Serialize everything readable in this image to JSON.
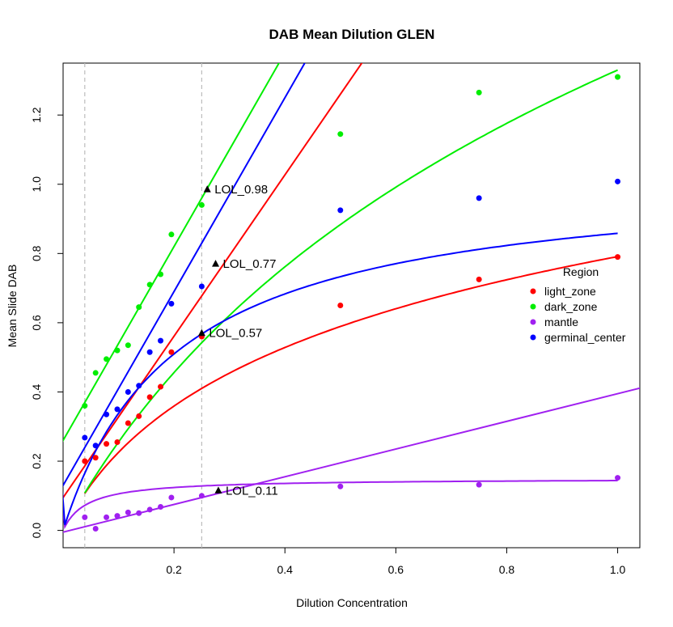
{
  "chart_data": {
    "type": "scatter",
    "title": "DAB Mean Dilution GLEN",
    "xlabel": "Dilution Concentration",
    "ylabel": "Mean Slide DAB",
    "xlim": [
      0.0,
      1.04
    ],
    "ylim": [
      -0.05,
      1.35
    ],
    "x_ticks": [
      0.2,
      0.4,
      0.6,
      0.8,
      1.0
    ],
    "x_tick_labels": [
      "0.2",
      "0.4",
      "0.6",
      "0.8",
      "1.0"
    ],
    "y_ticks": [
      0.0,
      0.2,
      0.4,
      0.6,
      0.8,
      1.0,
      1.2
    ],
    "y_tick_labels": [
      "0.0",
      "0.2",
      "0.4",
      "0.6",
      "0.8",
      "1.0",
      "1.2"
    ],
    "vlines": [
      0.0391,
      0.25
    ],
    "legend": {
      "title": "Region",
      "placement": "right"
    },
    "series": [
      {
        "name": "light_zone",
        "color": "#ff0000",
        "x": [
          0.0391,
          0.0586,
          0.0781,
          0.0977,
          0.1172,
          0.1367,
          0.1563,
          0.1758,
          0.1953,
          0.25,
          0.5,
          0.75,
          1.0
        ],
        "y": [
          0.2,
          0.21,
          0.25,
          0.255,
          0.31,
          0.33,
          0.385,
          0.415,
          0.515,
          0.56,
          0.65,
          0.725,
          0.79
        ],
        "log_fit": {
          "a": 0.791,
          "b": 0.104,
          "x_from": 0.0391
        },
        "lin_fit": {
          "a": 0.095,
          "b": 2.33
        },
        "lol": {
          "x": 0.25,
          "y": 0.57,
          "label": "LOL_0.57"
        }
      },
      {
        "name": "dark_zone",
        "color": "#00ee00",
        "x": [
          0.0391,
          0.0586,
          0.0781,
          0.0977,
          0.1172,
          0.1367,
          0.1563,
          0.1758,
          0.1953,
          0.25,
          0.5,
          0.75,
          1.0
        ],
        "y": [
          0.36,
          0.455,
          0.495,
          0.52,
          0.535,
          0.645,
          0.71,
          0.74,
          0.855,
          0.94,
          1.145,
          1.265,
          1.31
        ],
        "log_fit": {
          "a": 1.33,
          "b": 0.319,
          "x_from": 0.0391
        },
        "lin_fit": {
          "a": 0.26,
          "b": 2.8
        },
        "lol": {
          "x": 0.26,
          "y": 0.985,
          "label": "LOL_0.98"
        }
      },
      {
        "name": "mantle",
        "color": "#a020f0",
        "x": [
          0.0391,
          0.0586,
          0.0781,
          0.0977,
          0.1172,
          0.1367,
          0.1563,
          0.1758,
          0.1953,
          0.25,
          0.5,
          0.75,
          1.0
        ],
        "y": [
          0.038,
          0.005,
          0.038,
          0.042,
          0.052,
          0.05,
          0.06,
          0.068,
          0.095,
          0.1,
          0.127,
          0.132,
          0.152
        ],
        "log_fit": {
          "a": 0.15,
          "b": 0.042,
          "x_from": 0.0
        },
        "lin_fit": {
          "a": -0.005,
          "b": 0.4
        },
        "lol": {
          "x": 0.28,
          "y": 0.115,
          "label": "LOL_0.11"
        }
      },
      {
        "name": "germinal_center",
        "color": "#0000ff",
        "x": [
          0.0391,
          0.0586,
          0.0781,
          0.0977,
          0.1172,
          0.1367,
          0.1563,
          0.1758,
          0.1953,
          0.25,
          0.5,
          0.75,
          1.0
        ],
        "y": [
          0.268,
          0.245,
          0.335,
          0.35,
          0.4,
          0.418,
          0.515,
          0.548,
          0.655,
          0.705,
          0.925,
          0.96,
          1.008
        ],
        "log_fit": {
          "a": 1.035,
          "b": 0.206,
          "x_from": 0.0
        },
        "lin_fit": {
          "a": 0.13,
          "b": 2.8
        },
        "lol": {
          "x": 0.275,
          "y": 0.77,
          "label": "LOL_0.77"
        }
      }
    ]
  }
}
